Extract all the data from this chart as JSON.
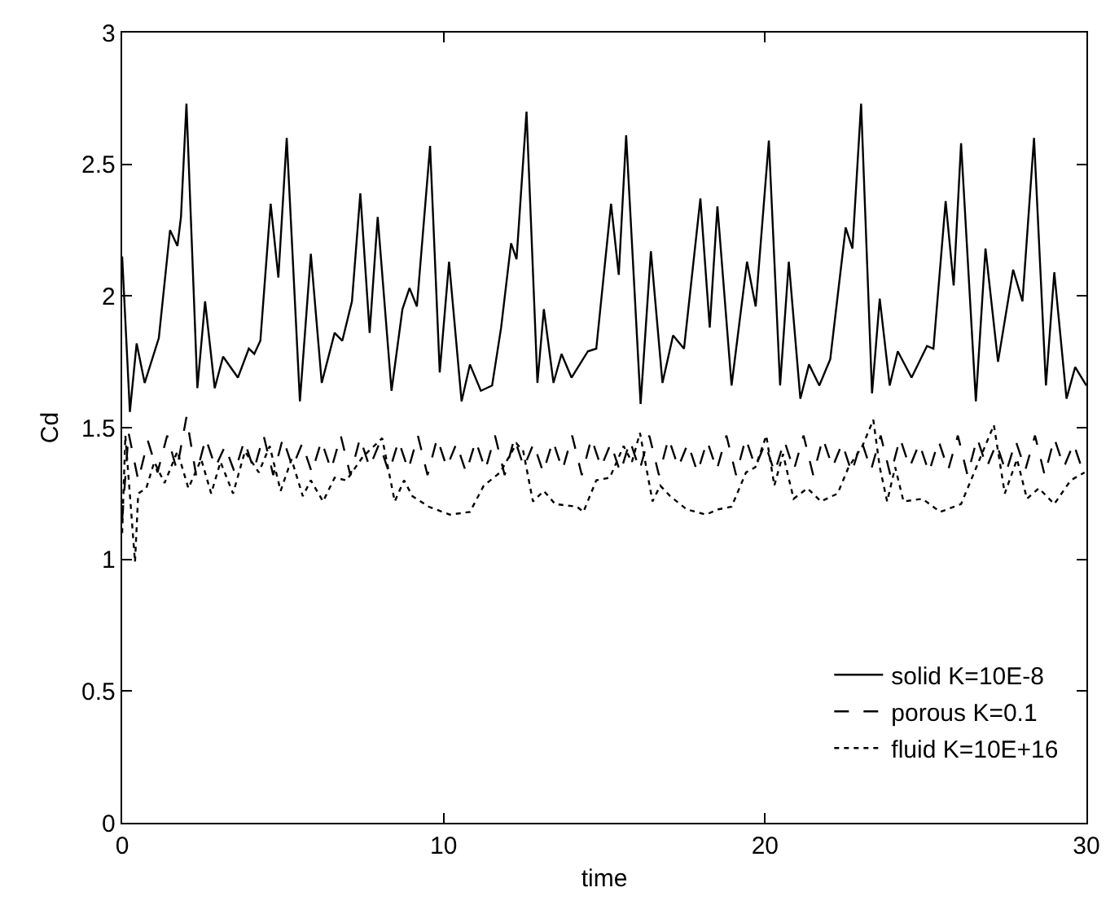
{
  "chart_data": {
    "type": "line",
    "xlabel": "time",
    "ylabel": "Cd",
    "xlim": [
      0,
      30
    ],
    "xticks": [
      0,
      10,
      20,
      30
    ],
    "ylim": [
      0,
      3
    ],
    "yticks": [
      0,
      0.5,
      1,
      1.5,
      2,
      2.5,
      3
    ],
    "grid": false,
    "legend": "bottom right",
    "series": [
      {
        "name": "solid K=10E-8",
        "color": "#000000",
        "line_style": "solid",
        "x": [
          0,
          0.24,
          0.45,
          0.7,
          1.14,
          1.49,
          1.72,
          1.83,
          2.0,
          2.34,
          2.58,
          2.88,
          3.14,
          3.6,
          3.94,
          4.11,
          4.3,
          4.62,
          4.86,
          5.12,
          5.53,
          5.87,
          6.21,
          6.61,
          6.85,
          7.15,
          7.41,
          7.7,
          7.95,
          8.38,
          8.72,
          8.94,
          9.17,
          9.58,
          9.88,
          10.17,
          10.56,
          10.82,
          11.16,
          11.51,
          11.79,
          12.1,
          12.27,
          12.58,
          12.92,
          13.12,
          13.42,
          13.67,
          13.98,
          14.49,
          14.75,
          15.21,
          15.45,
          15.68,
          16.13,
          16.45,
          16.81,
          17.14,
          17.48,
          17.99,
          18.28,
          18.52,
          18.96,
          19.44,
          19.71,
          20.12,
          20.47,
          20.74,
          21.1,
          21.37,
          21.69,
          22.03,
          22.51,
          22.72,
          22.99,
          23.33,
          23.57,
          23.88,
          24.13,
          24.56,
          25.04,
          25.24,
          25.62,
          25.87,
          26.1,
          26.56,
          26.86,
          27.25,
          27.72,
          28.01,
          28.37,
          28.74,
          29.0,
          29.38,
          29.65,
          30
        ],
        "values": [
          2.15,
          1.56,
          1.82,
          1.67,
          1.84,
          2.25,
          2.19,
          2.3,
          2.73,
          1.65,
          1.98,
          1.65,
          1.77,
          1.69,
          1.8,
          1.78,
          1.83,
          2.35,
          2.07,
          2.6,
          1.6,
          2.16,
          1.67,
          1.86,
          1.83,
          1.98,
          2.39,
          1.86,
          2.3,
          1.64,
          1.95,
          2.03,
          1.96,
          2.57,
          1.71,
          2.13,
          1.6,
          1.74,
          1.64,
          1.66,
          1.88,
          2.2,
          2.14,
          2.7,
          1.67,
          1.95,
          1.67,
          1.78,
          1.69,
          1.79,
          1.8,
          2.35,
          2.08,
          2.61,
          1.59,
          2.17,
          1.67,
          1.85,
          1.8,
          2.37,
          1.88,
          2.34,
          1.66,
          2.13,
          1.96,
          2.59,
          1.66,
          2.13,
          1.61,
          1.74,
          1.66,
          1.76,
          2.26,
          2.18,
          2.73,
          1.63,
          1.99,
          1.66,
          1.79,
          1.69,
          1.81,
          1.8,
          2.36,
          2.04,
          2.58,
          1.6,
          2.18,
          1.75,
          2.1,
          1.98,
          2.6,
          1.66,
          2.09,
          1.61,
          1.73,
          1.66
        ]
      },
      {
        "name": "porous K=0.1",
        "color": "#000000",
        "line_style": "dashed",
        "x": [
          0,
          0.2,
          0.5,
          0.8,
          1.1,
          1.4,
          1.7,
          2.0,
          2.3,
          2.6,
          2.9,
          3.2,
          3.5,
          3.8,
          4.1,
          4.4,
          4.7,
          5.0,
          5.3,
          5.6,
          5.9,
          6.2,
          6.5,
          6.8,
          7.1,
          7.4,
          7.7,
          8.0,
          8.3,
          8.6,
          8.9,
          9.2,
          9.5,
          9.8,
          10.1,
          10.4,
          10.7,
          11.0,
          11.3,
          11.6,
          11.9,
          12.2,
          12.5,
          12.8,
          13.1,
          13.4,
          13.7,
          14.0,
          14.3,
          14.6,
          14.9,
          15.2,
          15.5,
          15.8,
          16.1,
          16.4,
          16.7,
          17.0,
          17.3,
          17.6,
          17.9,
          18.2,
          18.5,
          18.8,
          19.1,
          19.4,
          19.7,
          20.0,
          20.3,
          20.6,
          20.9,
          21.2,
          21.5,
          21.8,
          22.1,
          22.4,
          22.7,
          23.0,
          23.3,
          23.6,
          23.9,
          24.2,
          24.5,
          24.8,
          25.1,
          25.4,
          25.7,
          26.0,
          26.3,
          26.6,
          26.9,
          27.2,
          27.5,
          27.8,
          28.1,
          28.4,
          28.7,
          29.0,
          29.3,
          29.6,
          29.9
        ],
        "values": [
          1.15,
          1.48,
          1.3,
          1.45,
          1.33,
          1.47,
          1.34,
          1.54,
          1.32,
          1.46,
          1.35,
          1.43,
          1.33,
          1.45,
          1.34,
          1.47,
          1.32,
          1.46,
          1.35,
          1.44,
          1.33,
          1.45,
          1.34,
          1.47,
          1.32,
          1.46,
          1.35,
          1.44,
          1.33,
          1.45,
          1.34,
          1.47,
          1.32,
          1.46,
          1.35,
          1.44,
          1.33,
          1.45,
          1.34,
          1.47,
          1.32,
          1.46,
          1.35,
          1.44,
          1.33,
          1.45,
          1.34,
          1.47,
          1.32,
          1.46,
          1.35,
          1.44,
          1.33,
          1.45,
          1.34,
          1.47,
          1.32,
          1.46,
          1.35,
          1.44,
          1.33,
          1.45,
          1.34,
          1.47,
          1.32,
          1.46,
          1.35,
          1.44,
          1.33,
          1.45,
          1.34,
          1.47,
          1.32,
          1.46,
          1.35,
          1.44,
          1.33,
          1.45,
          1.34,
          1.47,
          1.32,
          1.46,
          1.35,
          1.44,
          1.33,
          1.45,
          1.34,
          1.47,
          1.32,
          1.46,
          1.35,
          1.44,
          1.33,
          1.45,
          1.34,
          1.47,
          1.32,
          1.46,
          1.35,
          1.44,
          1.33
        ]
      },
      {
        "name": "fluid K=10E+16",
        "color": "#000000",
        "line_style": "dotted",
        "x": [
          0,
          0.1,
          0.4,
          0.5,
          0.75,
          1.0,
          1.32,
          1.72,
          2.06,
          2.46,
          2.77,
          3.06,
          3.45,
          3.82,
          4.25,
          4.59,
          4.93,
          5.27,
          5.62,
          5.87,
          6.25,
          6.61,
          6.98,
          7.49,
          8.09,
          8.48,
          8.77,
          9.03,
          9.54,
          10.19,
          10.82,
          11.25,
          11.76,
          12.27,
          12.48,
          12.78,
          13.12,
          13.47,
          14.15,
          14.35,
          14.75,
          15.17,
          15.6,
          15.86,
          16.11,
          16.5,
          16.74,
          17.05,
          17.56,
          18.16,
          18.55,
          18.96,
          19.41,
          19.7,
          20.04,
          20.29,
          20.56,
          20.89,
          21.32,
          21.74,
          22.26,
          22.6,
          23.03,
          23.37,
          23.57,
          23.8,
          24.05,
          24.31,
          24.9,
          25.45,
          26.1,
          26.61,
          27.12,
          27.46,
          27.84,
          28.15,
          28.52,
          29.0,
          29.51,
          29.94
        ],
        "values": [
          1.1,
          1.47,
          0.99,
          1.25,
          1.27,
          1.37,
          1.29,
          1.41,
          1.27,
          1.38,
          1.25,
          1.37,
          1.25,
          1.41,
          1.33,
          1.43,
          1.26,
          1.38,
          1.24,
          1.3,
          1.22,
          1.31,
          1.3,
          1.39,
          1.46,
          1.22,
          1.3,
          1.24,
          1.2,
          1.17,
          1.18,
          1.28,
          1.33,
          1.44,
          1.41,
          1.22,
          1.26,
          1.21,
          1.2,
          1.18,
          1.3,
          1.31,
          1.43,
          1.37,
          1.48,
          1.22,
          1.28,
          1.24,
          1.19,
          1.17,
          1.19,
          1.2,
          1.33,
          1.35,
          1.47,
          1.28,
          1.4,
          1.23,
          1.27,
          1.22,
          1.25,
          1.35,
          1.43,
          1.53,
          1.35,
          1.22,
          1.35,
          1.22,
          1.23,
          1.18,
          1.21,
          1.36,
          1.51,
          1.25,
          1.38,
          1.23,
          1.27,
          1.21,
          1.3,
          1.33
        ]
      }
    ]
  }
}
